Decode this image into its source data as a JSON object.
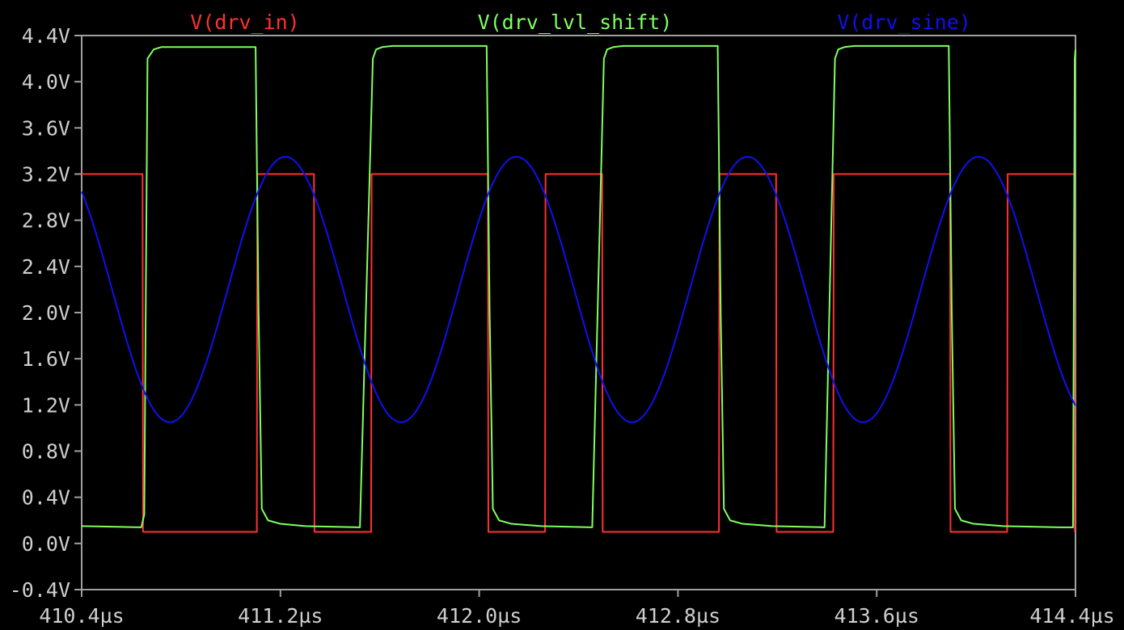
{
  "chart_data": {
    "type": "line",
    "title": "",
    "xlabel": "",
    "ylabel": "",
    "x_unit": "µs",
    "y_unit": "V",
    "xlim": [
      410.4,
      414.4
    ],
    "ylim": [
      -0.4,
      4.4
    ],
    "x_ticks": [
      410.4,
      411.2,
      412.0,
      412.8,
      413.6,
      414.4
    ],
    "x_tick_labels": [
      "410.4µs",
      "411.2µs",
      "412.0µs",
      "412.8µs",
      "413.6µs",
      "414.4µs"
    ],
    "y_ticks": [
      4.4,
      4.0,
      3.6,
      3.2,
      2.8,
      2.4,
      2.0,
      1.6,
      1.2,
      0.8,
      0.4,
      0.0,
      -0.4
    ],
    "y_tick_labels": [
      "4.4V",
      "4.0V",
      "3.6V",
      "3.2V",
      "2.8V",
      "2.4V",
      "2.0V",
      "1.6V",
      "1.2V",
      "0.8V",
      "0.4V",
      "0.0V",
      "-0.4V"
    ],
    "grid": false,
    "legend_position": "top",
    "background": "#000000",
    "axis_color": "#a0a0a0",
    "series": [
      {
        "name": "V(drv_in)",
        "color": "#ff3030",
        "x": [
          410.4,
          410.645,
          410.647,
          411.105,
          411.107,
          411.335,
          411.337,
          411.565,
          411.567,
          412.035,
          412.037,
          412.265,
          412.267,
          412.495,
          412.497,
          412.965,
          412.967,
          413.195,
          413.197,
          413.425,
          413.427,
          413.895,
          413.897,
          414.125,
          414.127,
          414.395,
          414.397
        ],
        "values": [
          3.2,
          3.2,
          0.1,
          0.1,
          3.2,
          3.2,
          0.1,
          0.1,
          3.2,
          3.2,
          0.1,
          0.1,
          3.2,
          3.2,
          0.1,
          0.1,
          3.2,
          3.2,
          0.1,
          0.1,
          3.2,
          3.2,
          0.1,
          0.1,
          3.2,
          3.2,
          0.1
        ]
      },
      {
        "name": "V(drv_lvl_shift)",
        "color": "#80ff60",
        "x": [
          410.4,
          410.64,
          410.652,
          410.665,
          410.69,
          410.72,
          411.1,
          411.112,
          411.125,
          411.15,
          411.2,
          411.3,
          411.52,
          411.572,
          411.585,
          411.61,
          411.65,
          412.03,
          412.042,
          412.055,
          412.08,
          412.13,
          412.25,
          412.455,
          412.502,
          412.515,
          412.54,
          412.58,
          412.96,
          412.972,
          412.985,
          413.01,
          413.06,
          413.18,
          413.39,
          413.432,
          413.445,
          413.47,
          413.51,
          413.89,
          413.902,
          413.915,
          413.94,
          413.99,
          414.11,
          414.34,
          414.39,
          414.397,
          414.4
        ],
        "values": [
          0.15,
          0.14,
          0.25,
          4.2,
          4.28,
          4.3,
          4.3,
          2.0,
          0.3,
          0.2,
          0.17,
          0.15,
          0.14,
          4.2,
          4.28,
          4.3,
          4.31,
          4.31,
          2.0,
          0.3,
          0.2,
          0.17,
          0.15,
          0.14,
          4.2,
          4.28,
          4.3,
          4.31,
          4.31,
          2.0,
          0.3,
          0.2,
          0.17,
          0.15,
          0.14,
          4.2,
          4.28,
          4.3,
          4.31,
          4.31,
          2.0,
          0.3,
          0.2,
          0.17,
          0.15,
          0.14,
          0.14,
          4.2,
          4.28
        ]
      },
      {
        "name": "V(drv_sine)",
        "color": "#1010ee",
        "generator": "sine",
        "offset": 2.2,
        "amplitude": 1.15,
        "period": 0.93,
        "peak_x": 411.22,
        "x_start": 410.4,
        "x_end": 414.4
      }
    ]
  }
}
